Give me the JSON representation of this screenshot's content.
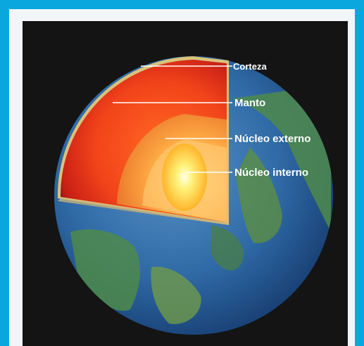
{
  "diagram": {
    "labels": {
      "crust": "Corteza",
      "mantle": "Manto",
      "outer_core": "Núcleo externo",
      "inner_core": "Núcleo interno"
    }
  }
}
